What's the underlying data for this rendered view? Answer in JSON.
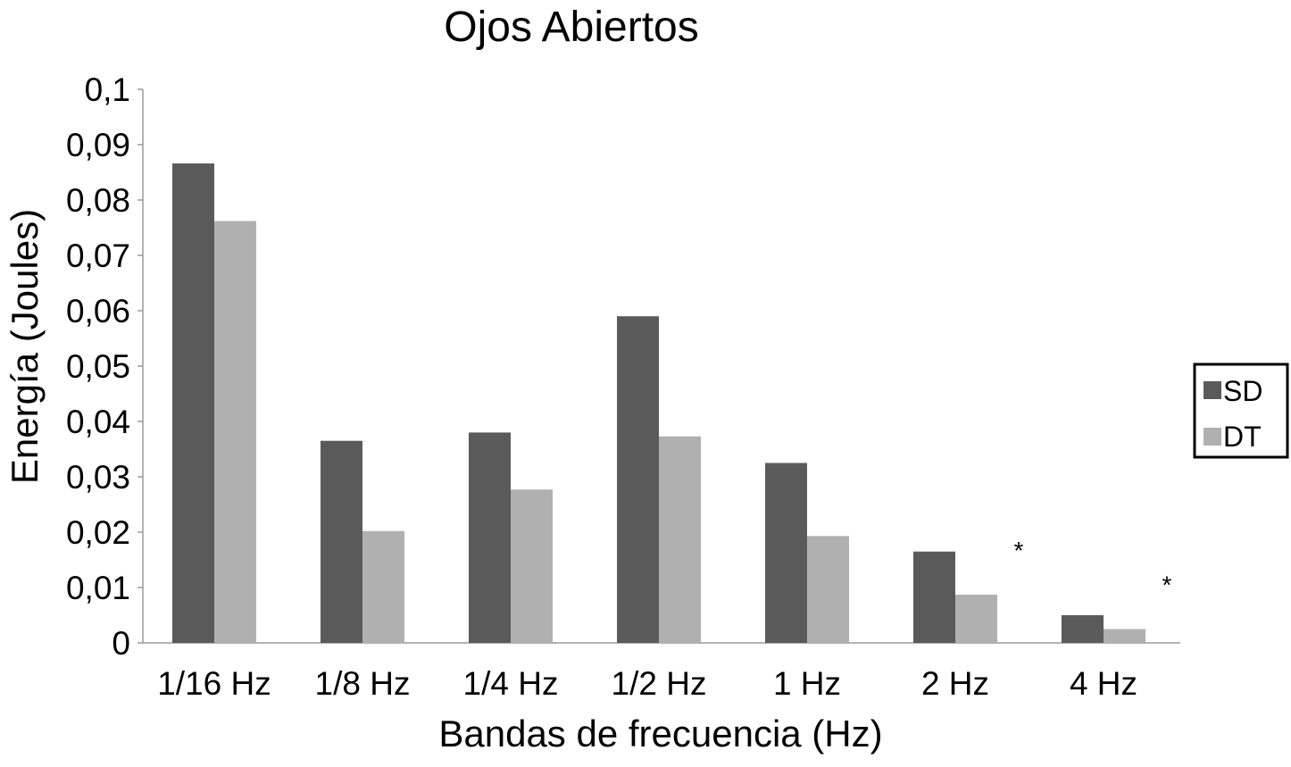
{
  "chart_data": {
    "type": "bar",
    "title": "Ojos Abiertos",
    "xlabel": "Bandas de frecuencia (Hz)",
    "ylabel": "Energía (Joules)",
    "categories": [
      "1/16 Hz",
      "1/8 Hz",
      "1/4 Hz",
      "1/2 Hz",
      "1 Hz",
      "2 Hz",
      "4 Hz"
    ],
    "series": [
      {
        "name": "SD",
        "color": "#5a5a5a",
        "values": [
          0.0866,
          0.0365,
          0.038,
          0.059,
          0.0325,
          0.0165,
          0.005
        ]
      },
      {
        "name": "DT",
        "color": "#b0b0b0",
        "values": [
          0.0762,
          0.0202,
          0.0277,
          0.0373,
          0.0193,
          0.0087,
          0.0025
        ]
      }
    ],
    "ylim": [
      0,
      0.1
    ],
    "yticks": [
      0,
      0.01,
      0.02,
      0.03,
      0.04,
      0.05,
      0.06,
      0.07,
      0.08,
      0.09,
      0.1
    ],
    "ytick_labels": [
      "0",
      "0,01",
      "0,02",
      "0,03",
      "0,04",
      "0,05",
      "0,06",
      "0,07",
      "0,08",
      "0,09",
      "0,1"
    ],
    "annotations": [
      {
        "category": "2 Hz",
        "text": "*"
      },
      {
        "category": "4 Hz",
        "text": "*"
      }
    ],
    "legend_position": "right",
    "grid": false
  }
}
